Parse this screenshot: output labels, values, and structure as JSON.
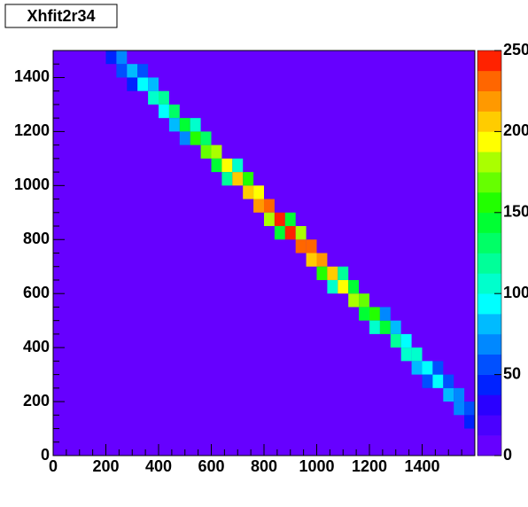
{
  "chart_data": {
    "type": "heatmap",
    "title": "Xhfit2r34",
    "xlim": [
      0,
      1600
    ],
    "ylim": [
      0,
      1500
    ],
    "xticks": [
      0,
      200,
      400,
      600,
      800,
      1000,
      1200,
      1400
    ],
    "yticks": [
      0,
      200,
      400,
      600,
      800,
      1000,
      1200,
      1400
    ],
    "xbin": 40,
    "ybin": 50,
    "zlim": [
      0,
      250
    ],
    "zticks": [
      0,
      50,
      100,
      150,
      200,
      250
    ],
    "palette": [
      "#6600ff",
      "#4a00ff",
      "#2a00ff",
      "#0022ff",
      "#0050ff",
      "#0088ff",
      "#00bbff",
      "#00ffff",
      "#00ffcc",
      "#00ff99",
      "#00ff66",
      "#00ff33",
      "#22ff00",
      "#66ff00",
      "#aaff00",
      "#ffff00",
      "#ffcc00",
      "#ff9900",
      "#ff6600",
      "#ff2200"
    ],
    "x": [
      200,
      240,
      240,
      280,
      280,
      320,
      320,
      360,
      360,
      400,
      400,
      440,
      440,
      480,
      480,
      520,
      520,
      560,
      560,
      600,
      600,
      640,
      640,
      680,
      680,
      720,
      720,
      760,
      760,
      800,
      800,
      840,
      840,
      880,
      880,
      920,
      920,
      960,
      960,
      1000,
      1000,
      1040,
      1040,
      1080,
      1080,
      1120,
      1120,
      1160,
      1160,
      1200,
      1200,
      1240,
      1240,
      1280,
      1280,
      1320,
      1320,
      1360,
      1360,
      1400,
      1400,
      1440,
      1440,
      1480,
      1480,
      1520,
      1520,
      1560,
      1560
    ],
    "y": [
      1450,
      1450,
      1400,
      1400,
      1350,
      1350,
      1400,
      1300,
      1350,
      1300,
      1250,
      1250,
      1200,
      1200,
      1150,
      1150,
      1200,
      1100,
      1150,
      1100,
      1050,
      1050,
      1000,
      1000,
      1050,
      950,
      1000,
      900,
      950,
      900,
      850,
      850,
      800,
      800,
      850,
      750,
      800,
      750,
      700,
      700,
      650,
      650,
      600,
      600,
      650,
      550,
      600,
      550,
      500,
      500,
      450,
      450,
      500,
      400,
      450,
      350,
      400,
      350,
      300,
      300,
      250,
      250,
      300,
      200,
      250,
      200,
      150,
      150,
      100
    ],
    "values": [
      40,
      71,
      51,
      83,
      46,
      94,
      58,
      106,
      83,
      117,
      99,
      129,
      87,
      140,
      71,
      152,
      100,
      164,
      136,
      176,
      140,
      188,
      118,
      200,
      108,
      212,
      150,
      224,
      196,
      236,
      177,
      244,
      142,
      238,
      140,
      233,
      176,
      228,
      200,
      219,
      153,
      207,
      110,
      195,
      124,
      183,
      147,
      168,
      139,
      156,
      102,
      144,
      74,
      120,
      82,
      112,
      95,
      104,
      81,
      96,
      58,
      88,
      50,
      80,
      59,
      70,
      63,
      60,
      44
    ]
  }
}
